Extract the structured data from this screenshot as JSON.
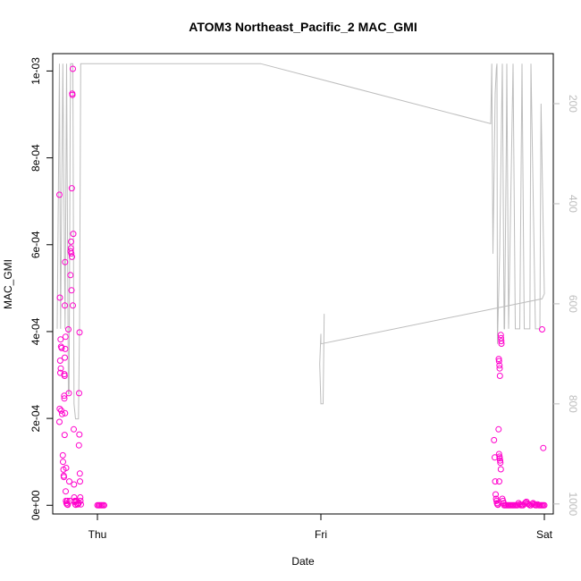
{
  "chart_data": {
    "type": "scatter",
    "title": "ATOM3 Northeast_Pacific_2 MAC_GMI",
    "xlabel": "Date",
    "ylabel": "MAC_GMI",
    "x_ticks": [
      {
        "label": "Thu",
        "day": 0
      },
      {
        "label": "Fri",
        "day": 1
      },
      {
        "label": "Sat",
        "day": 2
      }
    ],
    "xlim": [
      -0.2,
      2.04
    ],
    "ylim": [
      -2e-05,
      0.00104
    ],
    "y_ticks": [
      {
        "label": "0e+00",
        "value": 0
      },
      {
        "label": "2e-04",
        "value": 0.0002
      },
      {
        "label": "4e-04",
        "value": 0.0004
      },
      {
        "label": "6e-04",
        "value": 0.0006
      },
      {
        "label": "8e-04",
        "value": 0.0008
      },
      {
        "label": "1e-03",
        "value": 0.001
      }
    ],
    "y2_ticks": [
      {
        "label": "200",
        "value": 200
      },
      {
        "label": "400",
        "value": 400
      },
      {
        "label": "600",
        "value": 600
      },
      {
        "label": "800",
        "value": 800
      },
      {
        "label": "1000",
        "value": 1000
      }
    ],
    "y2lim_reversed": [
      1020,
      100
    ],
    "colors": {
      "points": "#ff00cc",
      "pressure_line": "#bdbdbd",
      "axes": "#000000",
      "right_axis": "#bdbdbd"
    },
    "series": [
      {
        "kind": "points",
        "points": [
          [
            -0.17,
            0.000715
          ],
          [
            -0.168,
            0.000478
          ],
          [
            -0.165,
            0.000382
          ],
          [
            -0.163,
            0.000365
          ],
          [
            -0.16,
            0.000362
          ],
          [
            -0.167,
            0.000333
          ],
          [
            -0.166,
            0.000305
          ],
          [
            -0.164,
            0.000315
          ],
          [
            -0.169,
            0.000222
          ],
          [
            -0.17,
            0.000192
          ],
          [
            -0.162,
            0.000218
          ],
          [
            -0.158,
            0.00021
          ],
          [
            -0.155,
            0.000115
          ],
          [
            -0.154,
            0.0001
          ],
          [
            -0.152,
            8.2e-05
          ],
          [
            -0.151,
            6.8e-05
          ],
          [
            -0.15,
            6.5e-05
          ],
          [
            -0.148,
            0.000302
          ],
          [
            -0.147,
            0.000298
          ],
          [
            -0.146,
            0.00034
          ],
          [
            -0.144,
            0.00036
          ],
          [
            -0.143,
            0.000388
          ],
          [
            -0.149,
            0.000252
          ],
          [
            -0.148,
            0.000246
          ],
          [
            -0.145,
            0.000212
          ],
          [
            -0.147,
            0.000162
          ],
          [
            -0.14,
            8.6e-05
          ],
          [
            -0.142,
            3.2e-05
          ],
          [
            -0.141,
            1e-05
          ],
          [
            -0.139,
            5e-06
          ],
          [
            -0.136,
            2e-06
          ],
          [
            -0.135,
            1e-05
          ],
          [
            -0.133,
            1e-06
          ],
          [
            -0.146,
            0.00046
          ],
          [
            -0.145,
            0.00056
          ],
          [
            -0.13,
            0.000405
          ],
          [
            -0.128,
            0.000258
          ],
          [
            -0.126,
            5.5e-05
          ],
          [
            -0.124,
            1e-05
          ],
          [
            -0.11,
            0.001005
          ],
          [
            -0.113,
            0.000948
          ],
          [
            -0.112,
            0.000945
          ],
          [
            -0.115,
            0.00073
          ],
          [
            -0.108,
            0.000625
          ],
          [
            -0.118,
            0.000607
          ],
          [
            -0.119,
            0.000592
          ],
          [
            -0.12,
            0.000585
          ],
          [
            -0.117,
            0.00058
          ],
          [
            -0.114,
            0.000572
          ],
          [
            -0.121,
            0.00053
          ],
          [
            -0.116,
            0.000495
          ],
          [
            -0.11,
            0.00046
          ],
          [
            -0.106,
            0.000175
          ],
          [
            -0.105,
            4.8e-05
          ],
          [
            -0.104,
            1.8e-05
          ],
          [
            -0.103,
            8e-06
          ],
          [
            -0.101,
            1e-05
          ],
          [
            -0.099,
            2e-06
          ],
          [
            -0.097,
            1e-06
          ],
          [
            -0.094,
            1e-05
          ],
          [
            -0.09,
            3e-06
          ],
          [
            -0.087,
            2e-06
          ],
          [
            -0.084,
            5e-06
          ],
          [
            -0.08,
            0.000398
          ],
          [
            -0.082,
            0.000258
          ],
          [
            -0.081,
            0.000163
          ],
          [
            -0.083,
            0.000138
          ],
          [
            -0.079,
            7.3e-05
          ],
          [
            -0.078,
            5.5e-05
          ],
          [
            -0.077,
            1.8e-05
          ],
          [
            -0.076,
            1e-05
          ],
          [
            -0.074,
            2e-06
          ],
          [
            0.0,
            0.0
          ],
          [
            0.005,
            0.0
          ],
          [
            0.01,
            0.0
          ],
          [
            0.015,
            0.0
          ],
          [
            0.02,
            0.0
          ],
          [
            0.025,
            0.0
          ],
          [
            0.03,
            0.0
          ],
          [
            1.775,
            0.00015
          ],
          [
            1.778,
            0.00011
          ],
          [
            1.78,
            5.5e-05
          ],
          [
            1.782,
            2.5e-05
          ],
          [
            1.784,
            1.5e-05
          ],
          [
            1.786,
            1e-05
          ],
          [
            1.788,
            5e-06
          ],
          [
            1.79,
            2e-06
          ],
          [
            1.792,
            1e-06
          ],
          [
            1.795,
            0.000175
          ],
          [
            1.797,
            0.000118
          ],
          [
            1.799,
            0.000112
          ],
          [
            1.8,
            0.000108
          ],
          [
            1.802,
            0.000103
          ],
          [
            1.803,
            9.8e-05
          ],
          [
            1.805,
            8.3e-05
          ],
          [
            1.798,
            5.5e-05
          ],
          [
            1.796,
            0.000337
          ],
          [
            1.797,
            0.000332
          ],
          [
            1.799,
            0.000322
          ],
          [
            1.8,
            0.000315
          ],
          [
            1.801,
            0.000298
          ],
          [
            1.805,
            0.000392
          ],
          [
            1.806,
            0.000385
          ],
          [
            1.807,
            0.000378
          ],
          [
            1.808,
            0.000372
          ],
          [
            1.812,
            1.5e-05
          ],
          [
            1.815,
            1e-05
          ],
          [
            1.818,
            5e-06
          ],
          [
            1.82,
            0.0
          ],
          [
            1.825,
            0.0
          ],
          [
            1.83,
            0.0
          ],
          [
            1.835,
            0.0
          ],
          [
            1.84,
            0.0
          ],
          [
            1.845,
            0.0
          ],
          [
            1.85,
            0.0
          ],
          [
            1.855,
            0.0
          ],
          [
            1.86,
            0.0
          ],
          [
            1.865,
            0.0
          ],
          [
            1.87,
            0.0
          ],
          [
            1.875,
            0.0
          ],
          [
            1.88,
            0.0
          ],
          [
            1.885,
            5e-06
          ],
          [
            1.89,
            2e-06
          ],
          [
            1.895,
            0.0
          ],
          [
            1.9,
            0.0
          ],
          [
            1.905,
            0.0
          ],
          [
            1.91,
            3e-06
          ],
          [
            1.915,
            6e-06
          ],
          [
            1.92,
            8e-06
          ],
          [
            1.925,
            4e-06
          ],
          [
            1.93,
            2e-06
          ],
          [
            1.935,
            0.0
          ],
          [
            1.94,
            0.0
          ],
          [
            1.945,
            3e-06
          ],
          [
            1.95,
            5e-06
          ],
          [
            1.955,
            2e-06
          ],
          [
            1.96,
            0.0
          ],
          [
            1.965,
            0.0
          ],
          [
            1.97,
            2e-06
          ],
          [
            1.975,
            0.0
          ],
          [
            1.98,
            0.0
          ],
          [
            1.985,
            0.0
          ],
          [
            1.99,
            0.0
          ],
          [
            1.995,
            0.0
          ],
          [
            2.0,
            0.0
          ],
          [
            1.99,
            0.000405
          ],
          [
            1.995,
            0.000132
          ]
        ]
      },
      {
        "kind": "pressure_line",
        "axis": "right",
        "points": [
          [
            -0.18,
            650
          ],
          [
            -0.17,
            120
          ],
          [
            -0.165,
            650
          ],
          [
            -0.155,
            120
          ],
          [
            -0.145,
            650
          ],
          [
            -0.138,
            120
          ],
          [
            -0.13,
            780
          ],
          [
            -0.127,
            780
          ],
          [
            -0.122,
            230
          ],
          [
            -0.12,
            120
          ],
          [
            -0.11,
            120
          ],
          [
            -0.105,
            800
          ],
          [
            -0.098,
            830
          ],
          [
            -0.085,
            830
          ],
          [
            -0.08,
            640
          ],
          [
            -0.075,
            120
          ],
          [
            -0.073,
            120
          ],
          [
            0.73,
            120
          ],
          [
            1.76,
            240
          ],
          [
            1.76,
            240
          ],
          [
            1.765,
            120
          ],
          [
            1.77,
            500
          ],
          [
            1.78,
            180
          ],
          [
            1.785,
            130
          ],
          [
            1.788,
            120
          ],
          [
            1.79,
            680
          ],
          [
            1.8,
            500
          ],
          [
            1.81,
            180
          ],
          [
            1.812,
            120
          ],
          [
            1.82,
            650
          ],
          [
            1.822,
            650
          ],
          [
            1.83,
            270
          ],
          [
            1.832,
            120
          ],
          [
            1.84,
            650
          ],
          [
            1.86,
            120
          ],
          [
            1.87,
            650
          ],
          [
            1.89,
            650
          ],
          [
            1.9,
            120
          ],
          [
            1.91,
            650
          ],
          [
            1.935,
            650
          ],
          [
            1.94,
            120
          ],
          [
            1.96,
            650
          ],
          [
            1.98,
            650
          ],
          [
            1.985,
            200
          ],
          [
            2.0,
            580
          ],
          [
            1.99,
            590
          ],
          [
            1.0,
            680
          ],
          [
            1.0,
            660
          ],
          [
            0.995,
            720
          ],
          [
            1.0,
            800
          ],
          [
            1.01,
            800
          ],
          [
            1.015,
            620
          ]
        ]
      }
    ]
  }
}
